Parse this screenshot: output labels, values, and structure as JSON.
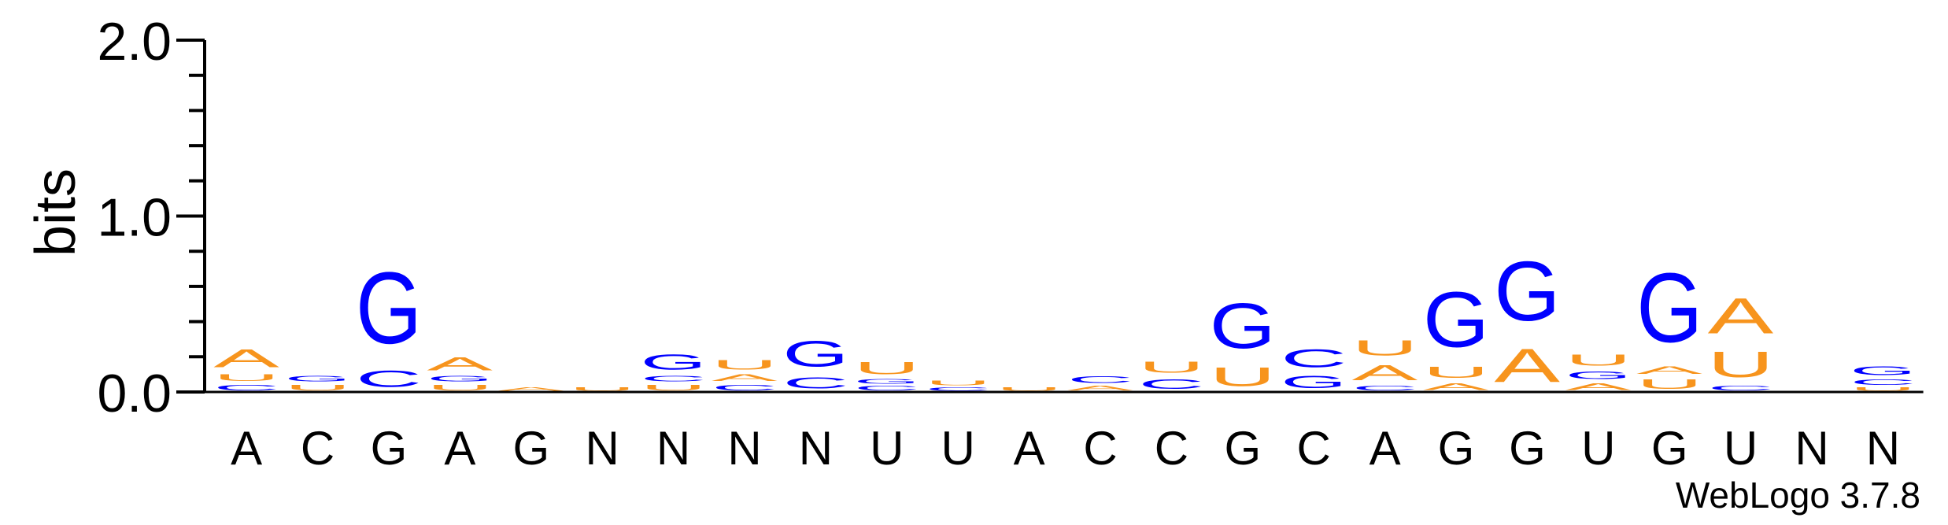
{
  "colors": {
    "purine_A": "#f7941d",
    "pyrimidine_U": "#f7941d",
    "C": "#0000ff",
    "G": "#0000ff",
    "axis": "#000000"
  },
  "chart_data": {
    "type": "sequence-logo",
    "ylabel": "bits",
    "ylim": [
      0,
      2
    ],
    "yticks": [
      "0.0",
      "1.0",
      "2.0"
    ],
    "credit": "WebLogo 3.7.8",
    "positions": [
      {
        "label": "A",
        "stack": [
          {
            "letter": "C",
            "bits": 0.05
          },
          {
            "letter": "U",
            "bits": 0.06
          },
          {
            "letter": "A",
            "bits": 0.16
          }
        ]
      },
      {
        "label": "C",
        "stack": [
          {
            "letter": "U",
            "bits": 0.05
          },
          {
            "letter": "G",
            "bits": 0.05
          }
        ]
      },
      {
        "label": "G",
        "stack": [
          {
            "letter": "C",
            "bits": 0.15
          },
          {
            "letter": "G",
            "bits": 0.65
          }
        ]
      },
      {
        "label": "A",
        "stack": [
          {
            "letter": "U",
            "bits": 0.05
          },
          {
            "letter": "G",
            "bits": 0.05
          },
          {
            "letter": "A",
            "bits": 0.12
          }
        ]
      },
      {
        "label": "G",
        "stack": [
          {
            "letter": "A",
            "bits": 0.03
          }
        ]
      },
      {
        "label": "N",
        "stack": [
          {
            "letter": "U",
            "bits": 0.03
          }
        ]
      },
      {
        "label": "N",
        "stack": [
          {
            "letter": "U",
            "bits": 0.05
          },
          {
            "letter": "C",
            "bits": 0.05
          },
          {
            "letter": "G",
            "bits": 0.14
          }
        ]
      },
      {
        "label": "N",
        "stack": [
          {
            "letter": "C",
            "bits": 0.05
          },
          {
            "letter": "A",
            "bits": 0.06
          },
          {
            "letter": "U",
            "bits": 0.09
          }
        ]
      },
      {
        "label": "N",
        "stack": [
          {
            "letter": "C",
            "bits": 0.1
          },
          {
            "letter": "G",
            "bits": 0.23
          }
        ]
      },
      {
        "label": "U",
        "stack": [
          {
            "letter": "C",
            "bits": 0.04
          },
          {
            "letter": "G",
            "bits": 0.04
          },
          {
            "letter": "U",
            "bits": 0.11
          }
        ]
      },
      {
        "label": "U",
        "stack": [
          {
            "letter": "C",
            "bits": 0.03
          },
          {
            "letter": "U",
            "bits": 0.04
          }
        ]
      },
      {
        "label": "A",
        "stack": [
          {
            "letter": "U",
            "bits": 0.03
          }
        ]
      },
      {
        "label": "C",
        "stack": [
          {
            "letter": "A",
            "bits": 0.04
          },
          {
            "letter": "C",
            "bits": 0.06
          }
        ]
      },
      {
        "label": "C",
        "stack": [
          {
            "letter": "C",
            "bits": 0.09
          },
          {
            "letter": "U",
            "bits": 0.1
          }
        ]
      },
      {
        "label": "G",
        "stack": [
          {
            "letter": "U",
            "bits": 0.17
          },
          {
            "letter": "G",
            "bits": 0.41
          }
        ]
      },
      {
        "label": "C",
        "stack": [
          {
            "letter": "G",
            "bits": 0.11
          },
          {
            "letter": "C",
            "bits": 0.16
          }
        ]
      },
      {
        "label": "A",
        "stack": [
          {
            "letter": "C",
            "bits": 0.04
          },
          {
            "letter": "A",
            "bits": 0.14
          },
          {
            "letter": "U",
            "bits": 0.14
          }
        ]
      },
      {
        "label": "G",
        "stack": [
          {
            "letter": "A",
            "bits": 0.06
          },
          {
            "letter": "U",
            "bits": 0.1
          },
          {
            "letter": "G",
            "bits": 0.5
          }
        ]
      },
      {
        "label": "G",
        "stack": [
          {
            "letter": "A",
            "bits": 0.3
          },
          {
            "letter": "G",
            "bits": 0.54
          }
        ]
      },
      {
        "label": "U",
        "stack": [
          {
            "letter": "A",
            "bits": 0.06
          },
          {
            "letter": "G",
            "bits": 0.07
          },
          {
            "letter": "U",
            "bits": 0.1
          }
        ]
      },
      {
        "label": "G",
        "stack": [
          {
            "letter": "U",
            "bits": 0.09
          },
          {
            "letter": "A",
            "bits": 0.07
          },
          {
            "letter": "G",
            "bits": 0.63
          }
        ]
      },
      {
        "label": "U",
        "stack": [
          {
            "letter": "C",
            "bits": 0.04
          },
          {
            "letter": "U",
            "bits": 0.23
          },
          {
            "letter": "A",
            "bits": 0.32
          }
        ]
      },
      {
        "label": "N",
        "stack": []
      },
      {
        "label": "N",
        "stack": [
          {
            "letter": "U",
            "bits": 0.03
          },
          {
            "letter": "C",
            "bits": 0.05
          },
          {
            "letter": "G",
            "bits": 0.08
          }
        ]
      }
    ]
  }
}
